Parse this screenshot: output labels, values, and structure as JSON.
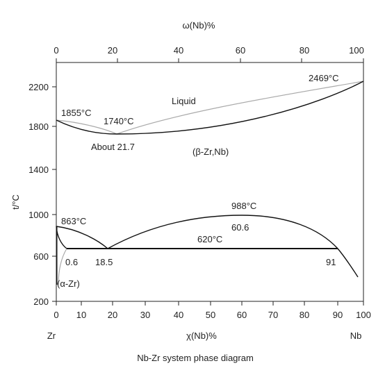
{
  "diagram": {
    "caption": "Nb-Zr system phase diagram",
    "top_axis": {
      "label": "ω(Nb)%",
      "tick_labels": [
        "0",
        "20",
        "40",
        "60",
        "80",
        "100"
      ]
    },
    "bottom_axis": {
      "label": "χ(Nb)%",
      "tick_labels": [
        "0",
        "10",
        "20",
        "30",
        "40",
        "50",
        "60",
        "70",
        "80",
        "90",
        "100"
      ]
    },
    "left_axis": {
      "label": "t/°C",
      "tick_labels": [
        "200",
        "600",
        "1000",
        "1400",
        "1800",
        "2200"
      ]
    },
    "components": {
      "left": "Zr",
      "right": "Nb"
    },
    "phase_labels": {
      "liquid": "Liquid",
      "beta": "(β-Zr,Nb)",
      "alpha": "(α-Zr)"
    },
    "annotations": {
      "zr_melting": "1855°C",
      "minimum_temp": "1740°C",
      "minimum_comp": "About 21.7",
      "nb_melting": "2469°C",
      "zr_transition": "863°C",
      "miscibility_peak": "988°C",
      "peak_comp": "60.6",
      "monotectoid_temp": "620°C",
      "alpha_solvus_comp": "0.6",
      "monotectoid_comp": "18.5",
      "nb_rich_comp": "91"
    },
    "colors": {
      "axis": "#222222",
      "solidus": "#111111",
      "liquidus": "#aaaaaa"
    }
  }
}
